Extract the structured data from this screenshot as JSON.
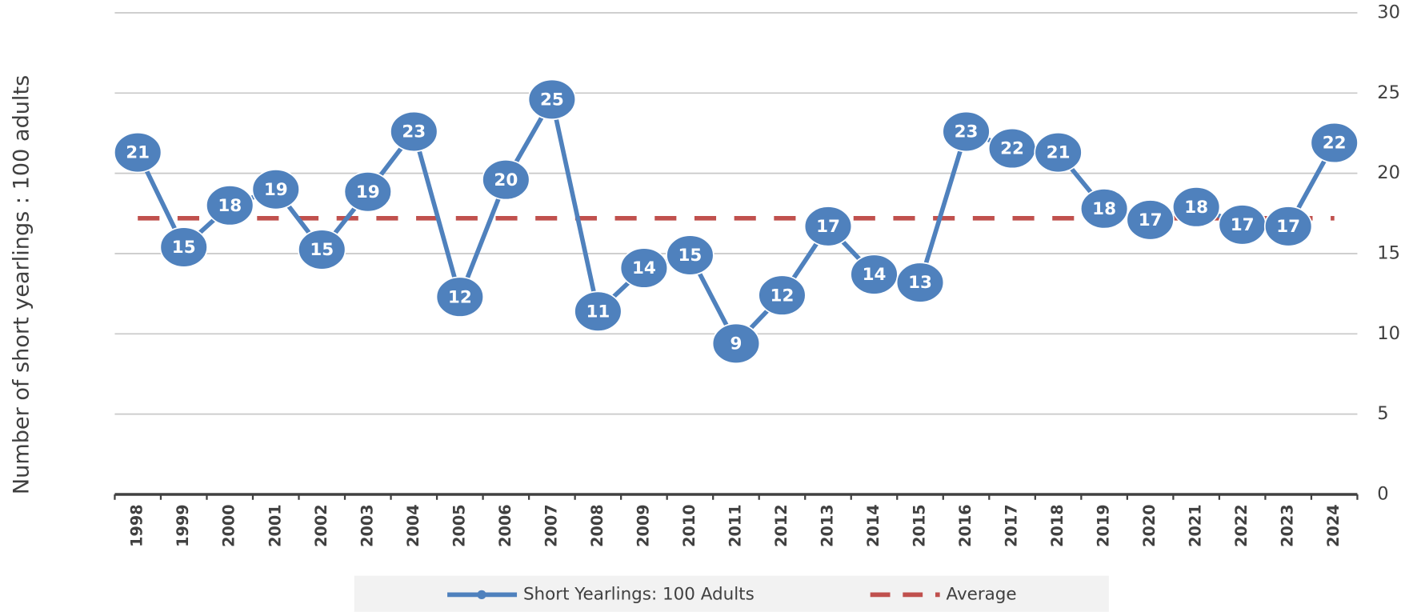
{
  "chart_data": {
    "type": "line",
    "y_label": "Number  of short yearlings : 100 adults",
    "categories": [
      "1998",
      "1999",
      "2000",
      "2001",
      "2002",
      "2003",
      "2004",
      "2005",
      "2006",
      "2007",
      "2008",
      "2009",
      "2010",
      "2011",
      "2012",
      "2013",
      "2014",
      "2015",
      "2016",
      "2017",
      "2018",
      "2019",
      "2020",
      "2021",
      "2022",
      "2023",
      "2024"
    ],
    "series": [
      {
        "name": "Short Yearlings: 100 Adults",
        "color": "#4f81bd",
        "values": [
          21.3,
          15.4,
          18.0,
          19.0,
          15.25,
          18.85,
          22.6,
          12.3,
          19.6,
          24.6,
          11.4,
          14.1,
          14.9,
          9.4,
          12.4,
          16.7,
          13.7,
          13.2,
          22.6,
          21.55,
          21.3,
          17.8,
          17.1,
          17.9,
          16.8,
          16.7,
          21.9
        ],
        "value_labels": [
          "21",
          "15",
          "18",
          "19",
          "15",
          "19",
          "23",
          "12",
          "20",
          "25",
          "11",
          "14",
          "15",
          "9",
          "12",
          "17",
          "14",
          "13",
          "23",
          "22",
          "21",
          "18",
          "17",
          "18",
          "17",
          "17",
          "22"
        ]
      },
      {
        "name": "Average",
        "color": "#c0504d",
        "dashed": true,
        "values": [
          17.2,
          17.2,
          17.2,
          17.2,
          17.2,
          17.2,
          17.2,
          17.2,
          17.2,
          17.2,
          17.2,
          17.2,
          17.2,
          17.2,
          17.2,
          17.2,
          17.2,
          17.2,
          17.2,
          17.2,
          17.2,
          17.2,
          17.2,
          17.2,
          17.2,
          17.2,
          17.2
        ]
      }
    ],
    "ylim": [
      0,
      30
    ],
    "yticks": [
      0,
      5,
      10,
      15,
      20,
      25,
      30
    ],
    "grid": true,
    "y_axis_side": "right",
    "legend": "bottom"
  }
}
